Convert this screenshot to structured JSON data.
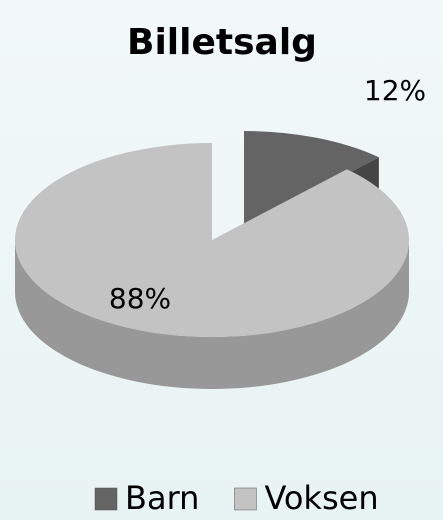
{
  "chart_data": {
    "type": "pie",
    "title": "Billetsalg",
    "categories": [
      "Barn",
      "Voksen"
    ],
    "values": [
      12,
      88
    ],
    "value_labels": [
      "12%",
      "88%"
    ],
    "colors": [
      "#646464",
      "#c3c3c3"
    ],
    "legend": "bottom"
  }
}
